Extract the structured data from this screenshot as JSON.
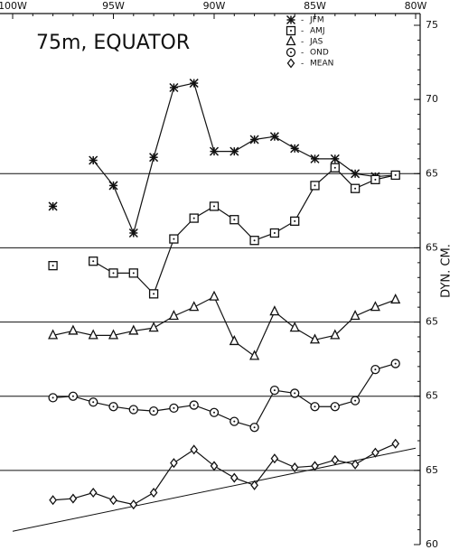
{
  "chart_data": {
    "type": "line",
    "title": "75m, EQUATOR",
    "y_label": "DYN. CM.",
    "x": [
      98,
      97,
      96,
      95,
      94,
      93,
      92,
      91,
      90,
      89,
      88,
      87,
      86,
      85,
      84,
      83,
      82,
      81
    ],
    "xlim": [
      100,
      80
    ],
    "xticks": [
      {
        "value": 100,
        "label": "100W"
      },
      {
        "value": 95,
        "label": "95W"
      },
      {
        "value": 90,
        "label": "90W"
      },
      {
        "value": 85,
        "label": "85W"
      },
      {
        "value": 80,
        "label": "80W"
      }
    ],
    "ylim": [
      60,
      95
    ],
    "yticks": [
      60,
      65,
      {
        "value": 70,
        "label": "65"
      },
      {
        "value": 75,
        "label": "65"
      },
      {
        "value": 80,
        "label": "65"
      },
      {
        "value": 85,
        "label": "65"
      },
      {
        "value": 90,
        "label": "70"
      },
      {
        "value": 95,
        "label": "75"
      }
    ],
    "reference_lines": [
      65,
      70,
      75,
      80,
      85
    ],
    "color": "#111111",
    "series": [
      {
        "name": "JFM",
        "marker": "star",
        "values": [
          82.8,
          null,
          85.9,
          84.2,
          81.0,
          86.1,
          90.8,
          91.1,
          86.5,
          86.5,
          87.3,
          87.5,
          86.7,
          86.0,
          86.0,
          85.0,
          84.8,
          84.9
        ]
      },
      {
        "name": "AMJ",
        "marker": "square",
        "values": [
          78.8,
          null,
          79.1,
          78.3,
          78.3,
          76.9,
          80.6,
          82.0,
          82.8,
          81.9,
          80.5,
          81.0,
          81.8,
          84.2,
          85.4,
          84.0,
          84.6,
          84.9
        ]
      },
      {
        "name": "JAS",
        "marker": "triangle",
        "values": [
          74.1,
          74.4,
          74.1,
          74.1,
          74.4,
          74.6,
          75.4,
          76.0,
          76.7,
          73.7,
          72.7,
          75.7,
          74.6,
          73.8,
          74.1,
          75.4,
          76.0,
          76.5
        ]
      },
      {
        "name": "OND",
        "marker": "circle",
        "values": [
          69.9,
          70.0,
          69.6,
          69.3,
          69.1,
          69.0,
          69.2,
          69.4,
          68.9,
          68.3,
          67.9,
          70.4,
          70.2,
          69.3,
          69.3,
          69.7,
          71.8,
          72.2
        ]
      },
      {
        "name": "MEAN",
        "marker": "diamond",
        "values": [
          63.0,
          63.1,
          63.5,
          63.0,
          62.7,
          63.5,
          65.5,
          66.4,
          65.3,
          64.5,
          64.0,
          65.8,
          65.2,
          65.3,
          65.7,
          65.4,
          66.2,
          66.8
        ]
      }
    ],
    "trend": {
      "x": [
        100,
        80
      ],
      "values": [
        60.9,
        66.5
      ]
    }
  }
}
